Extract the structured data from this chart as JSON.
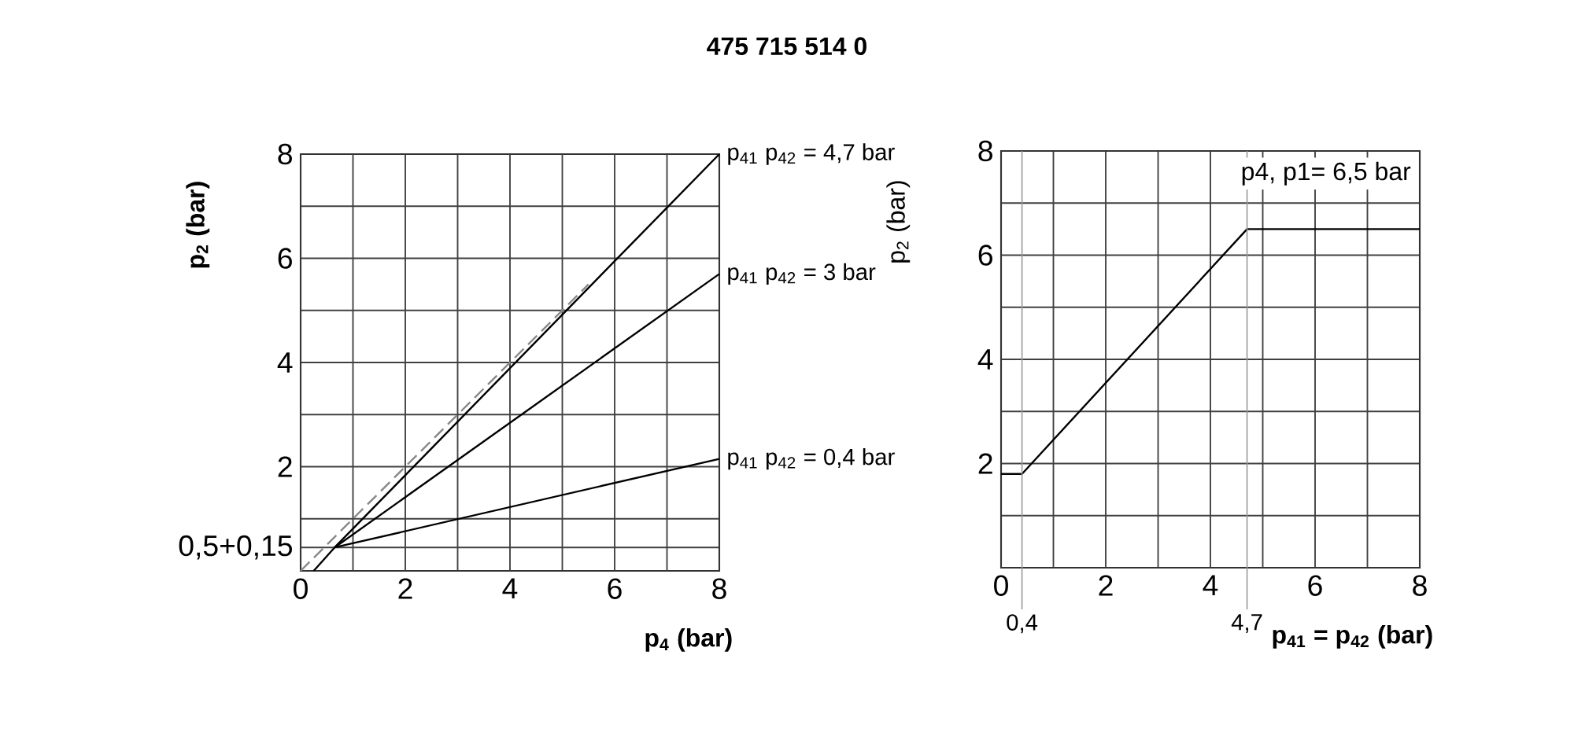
{
  "chart_data": [
    {
      "type": "line",
      "title": "475 715 514 0",
      "xlabel": "p$_{4}$ (bar)",
      "ylabel": "p$_{2}$ (bar)",
      "xlim": [
        0,
        8
      ],
      "ylim": [
        0,
        8
      ],
      "grid": true,
      "xticks": [
        0,
        {
          "value": 1,
          "label": null
        },
        2,
        {
          "value": 3,
          "label": null
        },
        4,
        {
          "value": 5,
          "label": null
        },
        6,
        {
          "value": 7,
          "label": null
        },
        8
      ],
      "yticks": [
        {
          "value": 0,
          "label": null
        },
        {
          "value": 0.45,
          "label": "0,5+0,15"
        },
        {
          "value": 1,
          "label": null
        },
        2,
        {
          "value": 3,
          "label": null
        },
        4,
        {
          "value": 5,
          "label": null
        },
        6,
        {
          "value": 7,
          "label": null
        },
        8
      ],
      "series": [
        {
          "name": "p$_{41}$ p$_{42}$ = 4,7 bar",
          "color": "#000000",
          "x": [
            0.25,
            0.65,
            8
          ],
          "values": [
            0,
            0.45,
            8
          ]
        },
        {
          "name": "p$_{41}$ p$_{42}$ = 3 bar",
          "color": "#000000",
          "x": [
            0.65,
            8
          ],
          "values": [
            0.45,
            5.7
          ]
        },
        {
          "name": "p$_{41}$ p$_{42}$ = 0,4 bar",
          "color": "#000000",
          "x": [
            0.65,
            8
          ],
          "values": [
            0.45,
            2.15
          ]
        },
        {
          "color": "#888888",
          "line_style": "dashed",
          "x": [
            0,
            5.5
          ],
          "values": [
            0,
            5.5
          ]
        }
      ]
    },
    {
      "type": "line",
      "xlabel": "p$_{41}$ = p$_{42}$ (bar)",
      "ylabel": "p$_{2}$ (bar)",
      "xlim": [
        0,
        8
      ],
      "ylim": [
        0,
        8
      ],
      "grid": true,
      "xticks": [
        0,
        {
          "value": 1,
          "label": null
        },
        2,
        {
          "value": 3,
          "label": null
        },
        4,
        {
          "value": 5,
          "label": null
        },
        6,
        {
          "value": 7,
          "label": null
        },
        8
      ],
      "yticks": [
        {
          "value": 0,
          "label": null
        },
        {
          "value": 1,
          "label": null
        },
        2,
        {
          "value": 3,
          "label": null
        },
        4,
        {
          "value": 5,
          "label": null
        },
        6,
        {
          "value": 7,
          "label": null
        },
        8
      ],
      "series": [
        {
          "color": "#000000",
          "x": [
            0,
            0.4,
            4.7,
            8
          ],
          "values": [
            1.8,
            1.8,
            6.5,
            6.5
          ]
        }
      ],
      "ref_lines": [
        {
          "axis": "x",
          "value": 0.4,
          "label": "0,4",
          "color": "#999999"
        },
        {
          "axis": "x",
          "value": 4.7,
          "label": "4,7",
          "color": "#999999"
        }
      ],
      "annotations": [
        "p4, p1= 6,5 bar"
      ]
    }
  ]
}
